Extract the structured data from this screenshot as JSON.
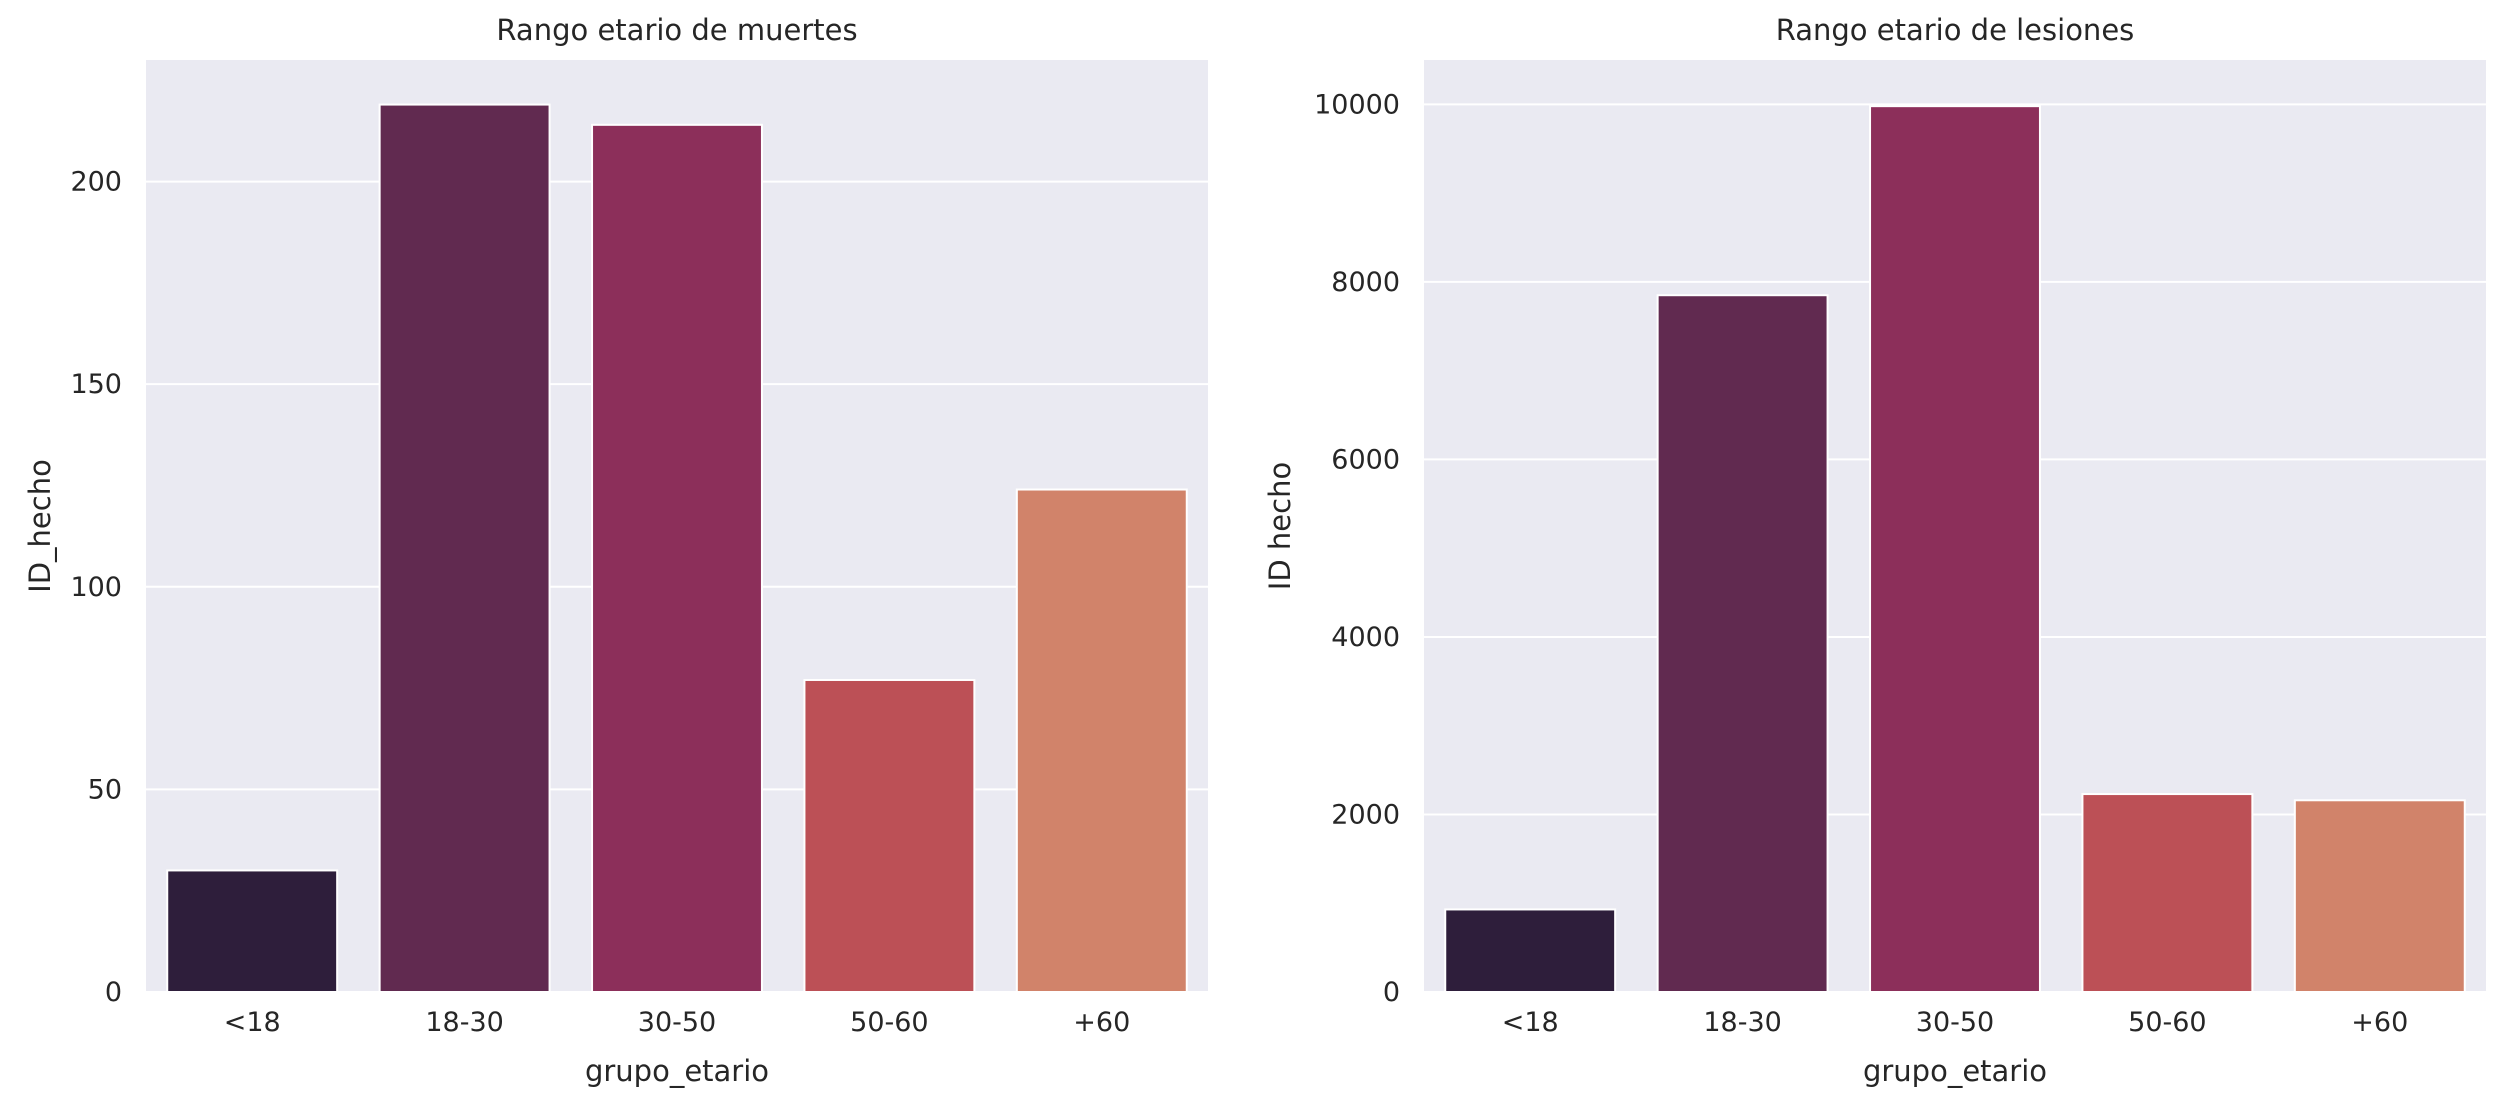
{
  "chart_data": [
    {
      "type": "bar",
      "title": "Rango etario de muertes",
      "xlabel": "grupo_etario",
      "ylabel": "ID_hecho",
      "categories": [
        "<18",
        "18-30",
        "30-50",
        "50-60",
        "+60"
      ],
      "values": [
        30,
        219,
        214,
        77,
        124
      ],
      "yticks": [
        0,
        50,
        100,
        150,
        200
      ],
      "ylim": [
        0,
        230
      ],
      "grid": true,
      "colors": [
        "#2e1e3b",
        "#612a50",
        "#8c2f5a",
        "#bc5056",
        "#d1836a"
      ]
    },
    {
      "type": "bar",
      "title": "Rango etario de lesiones",
      "xlabel": "grupo_etario",
      "ylabel": "ID hecho",
      "categories": [
        "<18",
        "18-30",
        "30-50",
        "50-60",
        "+60"
      ],
      "values": [
        930,
        7850,
        9980,
        2230,
        2160
      ],
      "yticks": [
        0,
        2000,
        4000,
        6000,
        8000,
        10000
      ],
      "ylim": [
        0,
        10500
      ],
      "grid": true,
      "colors": [
        "#2e1e3b",
        "#612a50",
        "#8c2f5a",
        "#bc5056",
        "#d1836a"
      ]
    }
  ]
}
